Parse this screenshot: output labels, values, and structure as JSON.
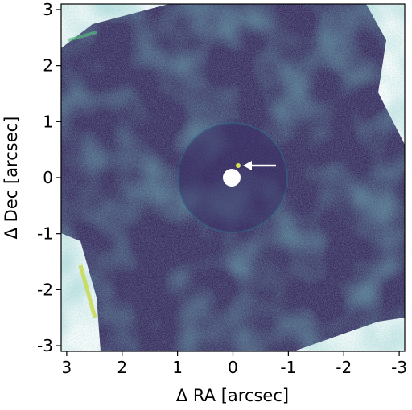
{
  "image": {
    "description_free": true,
    "colormap": "viridis",
    "colors": {
      "dark": "#3b2a5e",
      "mid": "#2a6f8f",
      "bright": "#3fae8c",
      "hot": "#d7e24f",
      "mask": "#ffffff",
      "arrow": "#ffffff"
    }
  },
  "axes": {
    "xlabel": "Δ RA [arcsec]",
    "ylabel": "Δ Dec [arcsec]",
    "xticks": [
      "3",
      "2",
      "1",
      "0",
      "-1",
      "-2",
      "-3"
    ],
    "yticks": [
      "3",
      "2",
      "1",
      "0",
      "-1",
      "-2",
      "-3"
    ],
    "xlim": [
      3.1,
      -3.1
    ],
    "ylim": [
      -3.1,
      3.1
    ]
  },
  "annotation": {
    "arrow_icon": "arrow-left-icon",
    "source_offset_ra": -0.1,
    "source_offset_dec": 0.2
  }
}
